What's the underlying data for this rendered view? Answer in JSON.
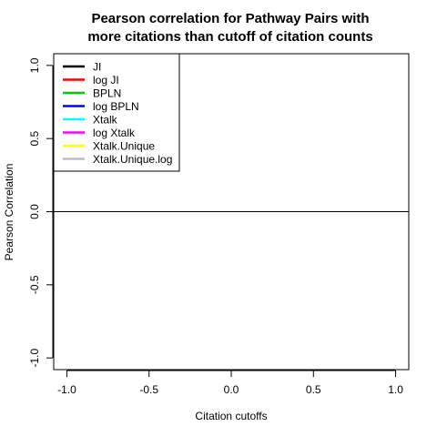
{
  "chart_data": {
    "type": "line",
    "title_lines": [
      "Pearson correlation for Pathway Pairs with",
      "more citations than cutoff of citation counts"
    ],
    "xlabel": "Citation cutoffs",
    "ylabel": "Pearson Correlation",
    "xlim": [
      -1.08,
      1.08
    ],
    "ylim": [
      -1.08,
      1.08
    ],
    "x_ticks": [
      -1.0,
      -0.5,
      0.0,
      0.5,
      1.0
    ],
    "x_tick_labels": [
      "-1.0",
      "-0.5",
      "0.0",
      "0.5",
      "1.0"
    ],
    "y_ticks": [
      -1.0,
      -0.5,
      0.0,
      0.5,
      1.0
    ],
    "y_tick_labels": [
      "-1.0",
      "-0.5",
      "0.0",
      "0.5",
      "1.0"
    ],
    "reference_line": {
      "y": 0.0,
      "color": "#000000"
    },
    "legend_position": "top-left",
    "series": [
      {
        "name": "JI",
        "color": "#000000",
        "values": []
      },
      {
        "name": "log JI",
        "color": "#ff0000",
        "values": []
      },
      {
        "name": "BPLN",
        "color": "#00cd00",
        "values": []
      },
      {
        "name": "log BPLN",
        "color": "#0000ff",
        "values": []
      },
      {
        "name": "Xtalk",
        "color": "#00ffff",
        "values": []
      },
      {
        "name": "log Xtalk",
        "color": "#ff00ff",
        "values": []
      },
      {
        "name": "Xtalk.Unique",
        "color": "#ffff00",
        "values": []
      },
      {
        "name": "Xtalk.Unique.log",
        "color": "#bebebe",
        "values": []
      }
    ]
  }
}
